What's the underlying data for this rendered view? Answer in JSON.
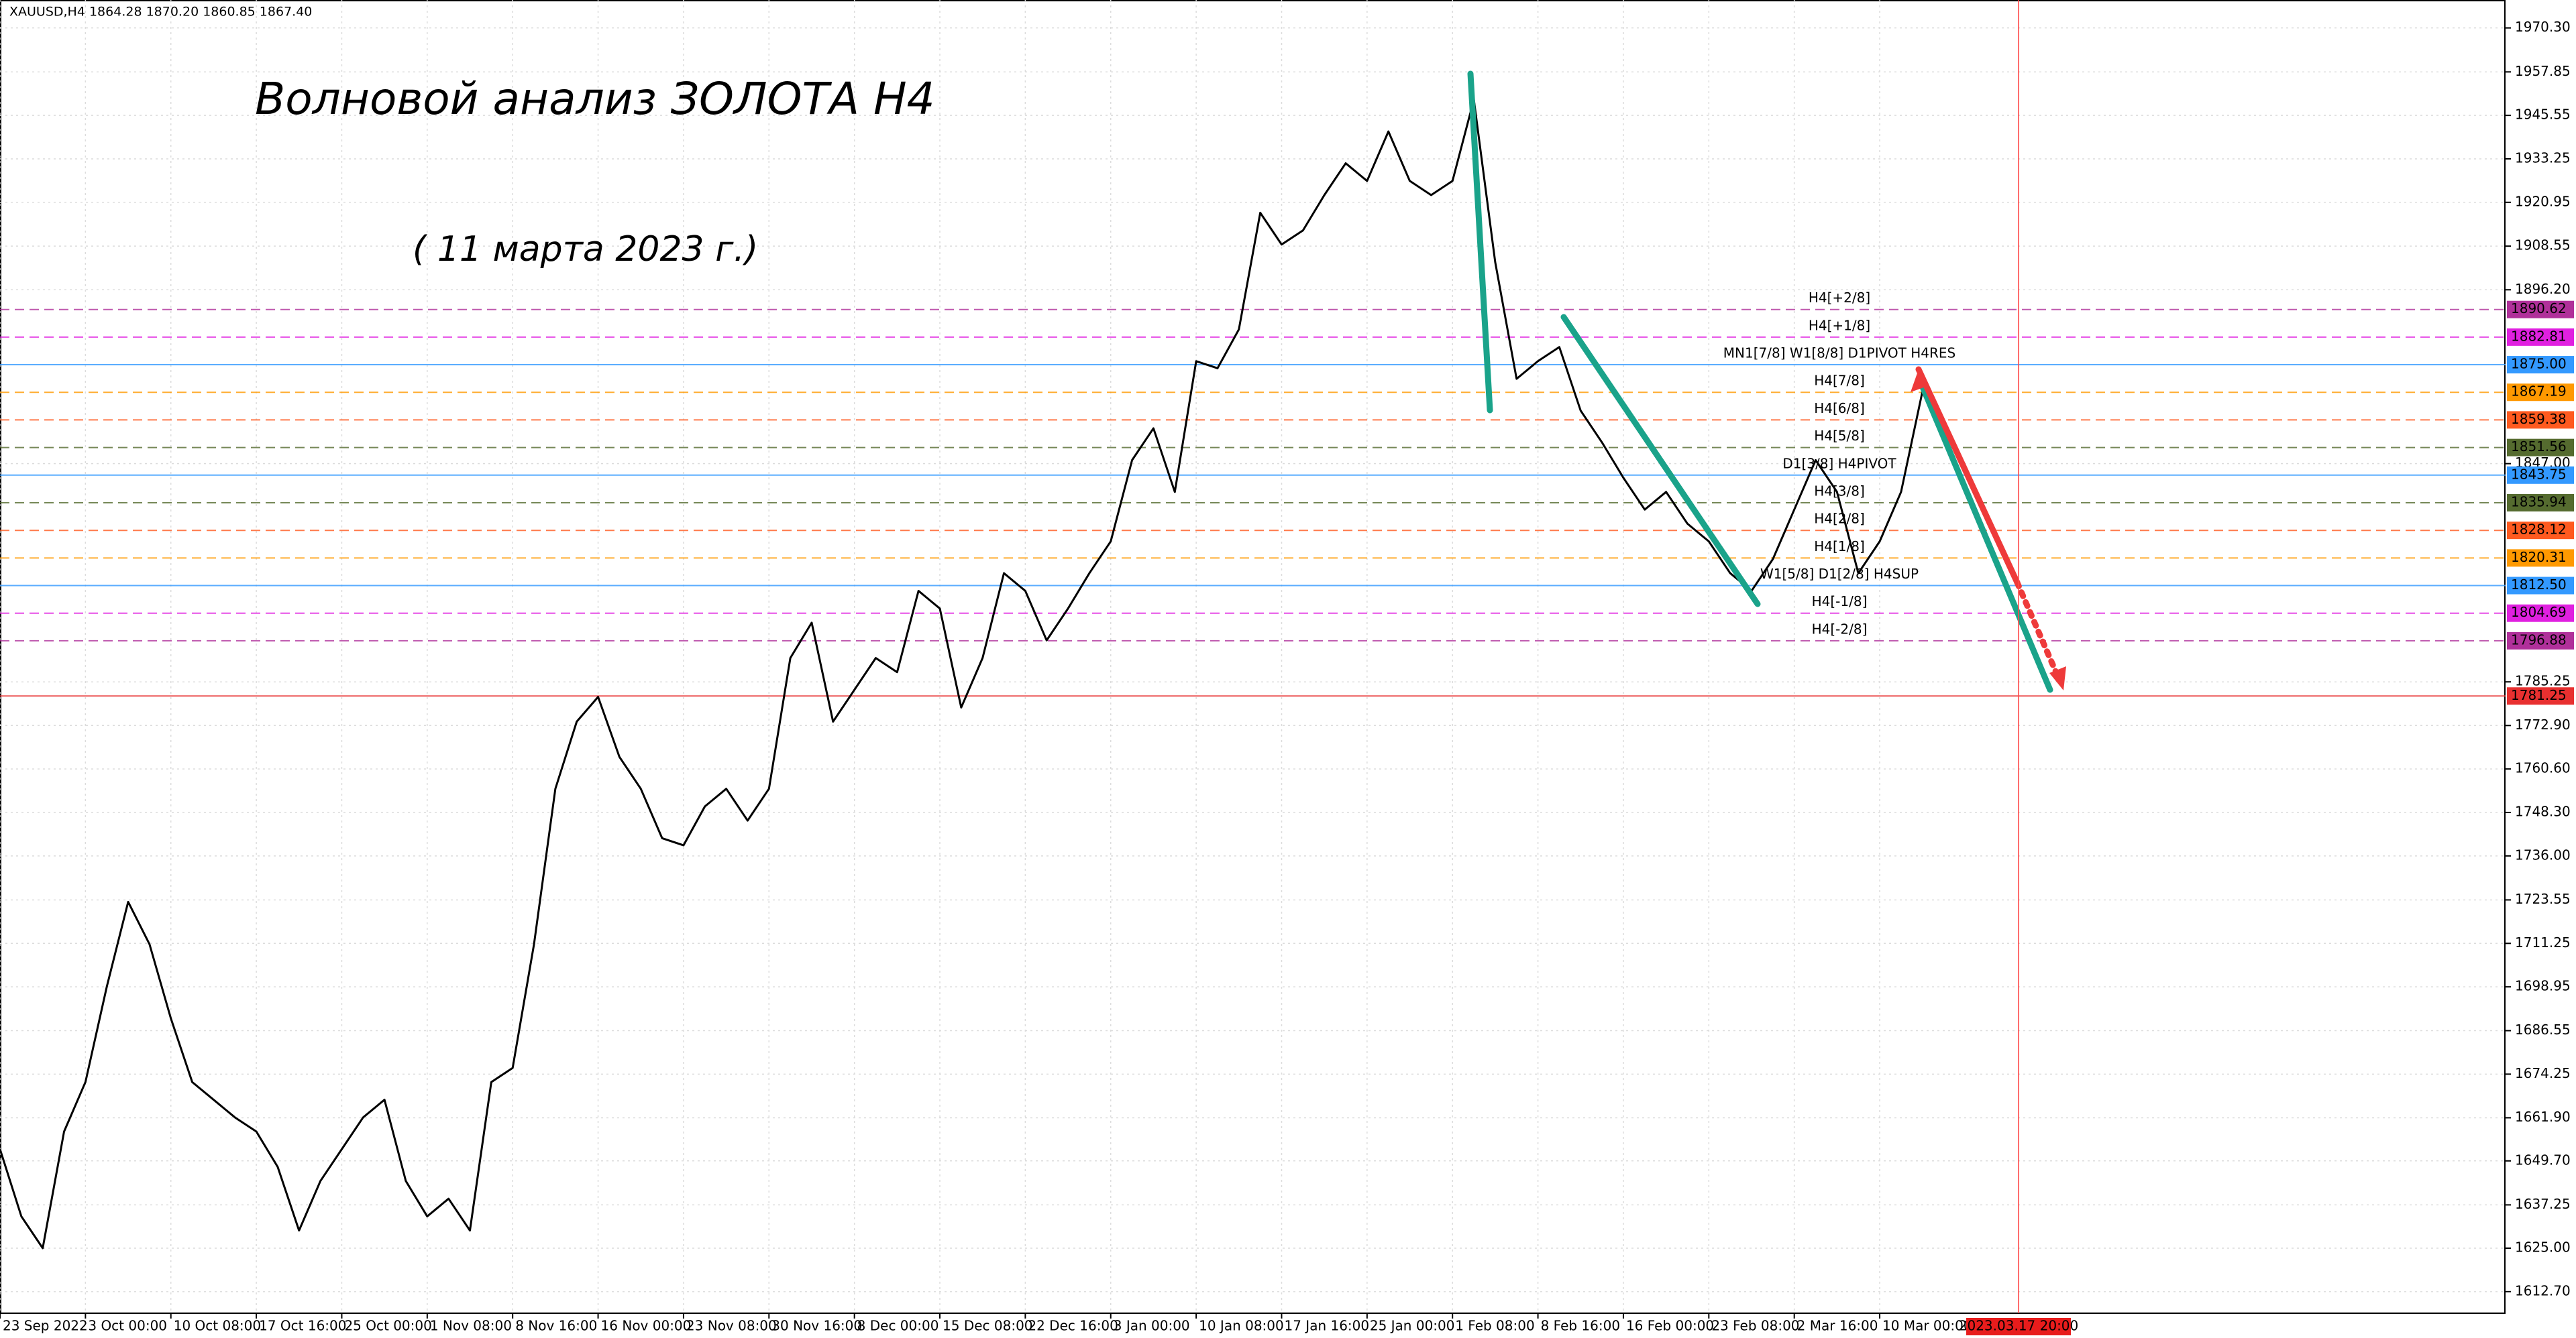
{
  "chart_data": {
    "type": "line",
    "header": "XAUUSD,H4  1864.28 1870.20 1860.85 1867.40",
    "title": "Волновой анализ ЗОЛОТА H4",
    "subtitle": "( 11 марта 2023 г.)",
    "color": "#000000",
    "grid": true,
    "values": [
      1653,
      1634,
      1625,
      1658,
      1672,
      1699,
      1723,
      1711,
      1690,
      1672,
      1667,
      1662,
      1658,
      1648,
      1630,
      1644,
      1653,
      1662,
      1667,
      1644,
      1634,
      1639,
      1630,
      1672,
      1676,
      1711,
      1755,
      1774,
      1781,
      1764,
      1755,
      1741,
      1739,
      1750,
      1755,
      1746,
      1755,
      1792,
      1802,
      1774,
      1783,
      1792,
      1788,
      1811,
      1806,
      1778,
      1792,
      1816,
      1811,
      1797,
      1806,
      1816,
      1825,
      1848,
      1857,
      1839,
      1876,
      1874,
      1885,
      1918,
      1909,
      1913,
      1923,
      1932,
      1927,
      1941,
      1927,
      1923,
      1927,
      1950,
      1904,
      1871,
      1876,
      1880,
      1862,
      1853,
      1843,
      1834,
      1839,
      1830,
      1825,
      1816,
      1811,
      1820,
      1834,
      1848,
      1839,
      1816,
      1825,
      1839,
      1867.4
    ],
    "xlim": [
      0,
      117.3
    ],
    "xticks": [
      {
        "value": 0,
        "label": "23 Sep 2022"
      },
      {
        "value": 4,
        "label": "3 Oct 00:00"
      },
      {
        "value": 8,
        "label": "10 Oct 08:00"
      },
      {
        "value": 12,
        "label": "17 Oct 16:00"
      },
      {
        "value": 16,
        "label": "25 Oct 00:00"
      },
      {
        "value": 20,
        "label": "1 Nov 08:00"
      },
      {
        "value": 24,
        "label": "8 Nov 16:00"
      },
      {
        "value": 28,
        "label": "16 Nov 00:00"
      },
      {
        "value": 32,
        "label": "23 Nov 08:00"
      },
      {
        "value": 36,
        "label": "30 Nov 16:00"
      },
      {
        "value": 40,
        "label": "8 Dec 00:00"
      },
      {
        "value": 44,
        "label": "15 Dec 08:00"
      },
      {
        "value": 48,
        "label": "22 Dec 16:00"
      },
      {
        "value": 52,
        "label": "3 Jan 00:00"
      },
      {
        "value": 56,
        "label": "10 Jan 08:00"
      },
      {
        "value": 60,
        "label": "17 Jan 16:00"
      },
      {
        "value": 64,
        "label": "25 Jan 00:00"
      },
      {
        "value": 68,
        "label": "1 Feb 08:00"
      },
      {
        "value": 72,
        "label": "8 Feb 16:00"
      },
      {
        "value": 76,
        "label": "16 Feb 00:00"
      },
      {
        "value": 80,
        "label": "23 Feb 08:00"
      },
      {
        "value": 84,
        "label": "2 Mar 16:00"
      },
      {
        "value": 88,
        "label": "10 Mar 00:00"
      }
    ],
    "marker": {
      "value": 94.5,
      "label": "2023.03.17 20:00"
    },
    "ylim": [
      1606.6,
      1978.2
    ],
    "yticks": [
      {
        "value": 1612.7,
        "label": "1612.70"
      },
      {
        "value": 1625,
        "label": "1625.00"
      },
      {
        "value": 1637.25,
        "label": "1637.25"
      },
      {
        "value": 1649.7,
        "label": "1649.70"
      },
      {
        "value": 1661.9,
        "label": "1661.90"
      },
      {
        "value": 1674.25,
        "label": "1674.25"
      },
      {
        "value": 1686.55,
        "label": "1686.55"
      },
      {
        "value": 1698.95,
        "label": "1698.95"
      },
      {
        "value": 1711.25,
        "label": "1711.25"
      },
      {
        "value": 1723.55,
        "label": "1723.55"
      },
      {
        "value": 1736,
        "label": "1736.00"
      },
      {
        "value": 1748.3,
        "label": "1748.30"
      },
      {
        "value": 1760.6,
        "label": "1760.60"
      },
      {
        "value": 1772.9,
        "label": "1772.90"
      },
      {
        "value": 1785.25,
        "label": "1785.25"
      },
      {
        "value": 1847,
        "label": "1847.00"
      },
      {
        "value": 1896.2,
        "label": "1896.20"
      },
      {
        "value": 1908.55,
        "label": "1908.55"
      },
      {
        "value": 1920.95,
        "label": "1920.95"
      },
      {
        "value": 1933.25,
        "label": "1933.25"
      },
      {
        "value": 1945.55,
        "label": "1945.55"
      },
      {
        "value": 1957.85,
        "label": "1957.85"
      },
      {
        "value": 1970.3,
        "label": "1970.30"
      }
    ],
    "levels": [
      {
        "value": 1890.62,
        "tag": "1890.62",
        "label": "H4[+2/8]",
        "color": "#b0309a",
        "dash": true
      },
      {
        "value": 1882.81,
        "tag": "1882.81",
        "label": "H4[+1/8]",
        "color": "#e020e0",
        "dash": true
      },
      {
        "value": 1875,
        "tag": "1875.00",
        "label": "MN1[7/8] W1[8/8] D1PIVOT H4RES",
        "color": "#3399ff",
        "dash": false
      },
      {
        "value": 1867.19,
        "tag": "1867.19",
        "label": "H4[7/8]",
        "color": "#ff9900",
        "dash": true
      },
      {
        "value": 1859.38,
        "tag": "1859.38",
        "label": "H4[6/8]",
        "color": "#ff5a1f",
        "dash": true
      },
      {
        "value": 1851.56,
        "tag": "1851.56",
        "label": "H4[5/8]",
        "color": "#556b2f",
        "dash": true
      },
      {
        "value": 1843.75,
        "tag": "1843.75",
        "label": "D1[3/8] H4PIVOT",
        "color": "#3399ff",
        "dash": false
      },
      {
        "value": 1835.94,
        "tag": "1835.94",
        "label": "H4[3/8]",
        "color": "#556b2f",
        "dash": true
      },
      {
        "value": 1828.12,
        "tag": "1828.12",
        "label": "H4[2/8]",
        "color": "#ff5a1f",
        "dash": true
      },
      {
        "value": 1820.31,
        "tag": "1820.31",
        "label": "H4[1/8]",
        "color": "#ff9900",
        "dash": true
      },
      {
        "value": 1812.5,
        "tag": "1812.50",
        "label": "W1[5/8] D1[2/8] H4SUP",
        "color": "#3399ff",
        "dash": false
      },
      {
        "value": 1804.69,
        "tag": "1804.69",
        "label": "H4[-1/8]",
        "color": "#e020e0",
        "dash": true
      },
      {
        "value": 1796.88,
        "tag": "1796.88",
        "label": "H4[-2/8]",
        "color": "#b0309a",
        "dash": true
      },
      {
        "value": 1781.25,
        "tag": "1781.25",
        "color": "#e83030",
        "dash": false
      }
    ]
  }
}
